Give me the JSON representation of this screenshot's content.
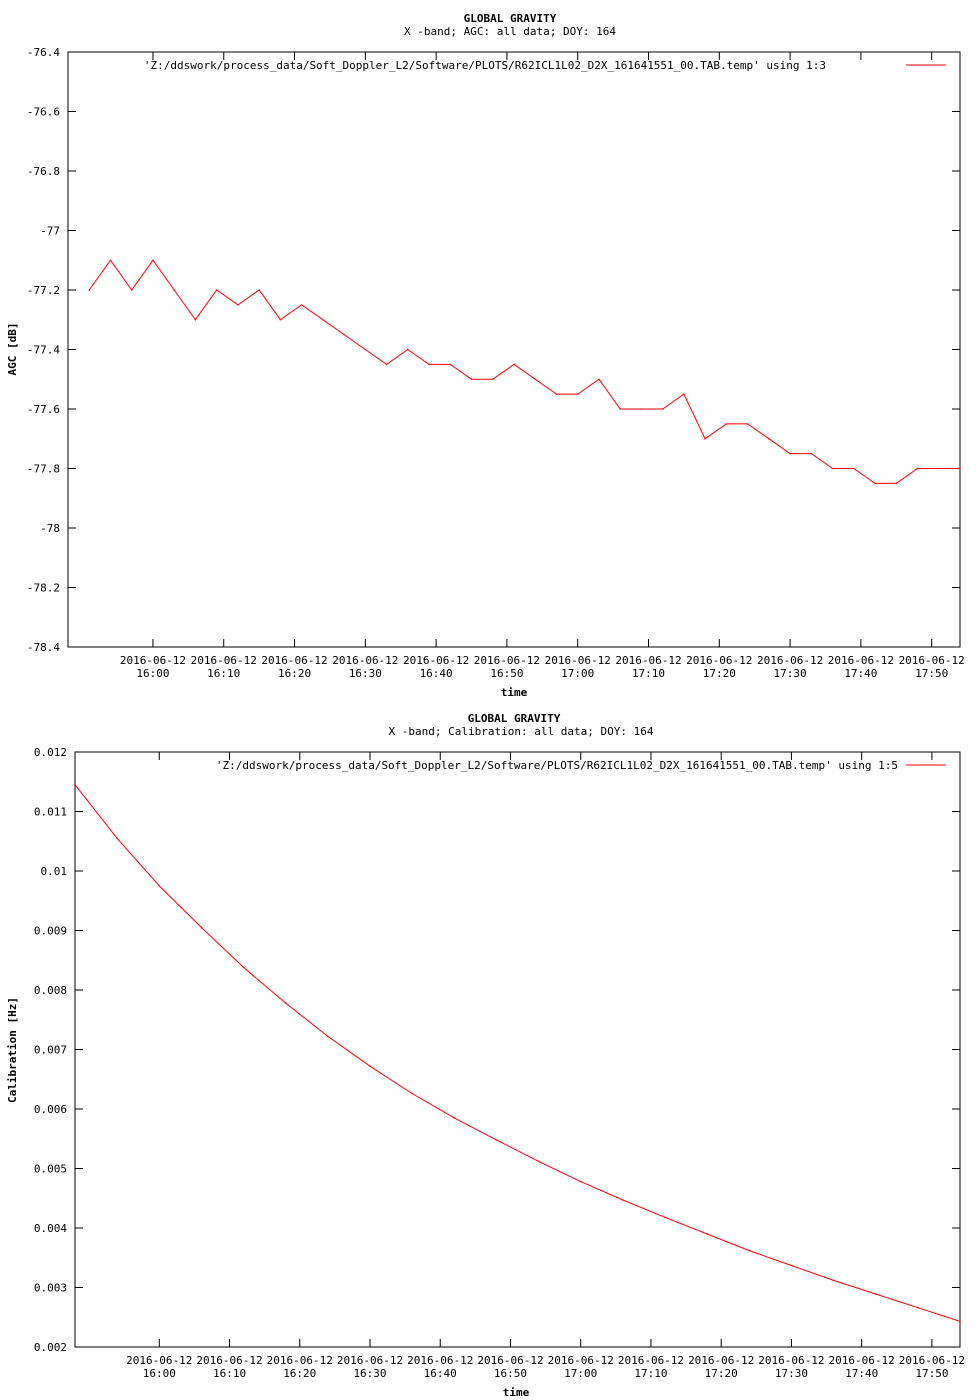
{
  "chart_data": [
    {
      "type": "line",
      "title": "GLOBAL GRAVITY",
      "subtitle": "X -band; AGC: all data; DOY: 164",
      "xlabel": "time",
      "ylabel": "AGC [dB]",
      "ylim": [
        -78.4,
        -76.4
      ],
      "yticks": [
        -76.4,
        -76.6,
        -76.8,
        -77,
        -77.2,
        -77.4,
        -77.6,
        -77.8,
        -78,
        -78.2,
        -78.4
      ],
      "xlim": [
        15.8,
        17.9
      ],
      "xticks": [
        {
          "v": 16.0,
          "date": "2016-06-12",
          "time": "16:00"
        },
        {
          "v": 16.1666667,
          "date": "2016-06-12",
          "time": "16:10"
        },
        {
          "v": 16.3333333,
          "date": "2016-06-12",
          "time": "16:20"
        },
        {
          "v": 16.5,
          "date": "2016-06-12",
          "time": "16:30"
        },
        {
          "v": 16.6666667,
          "date": "2016-06-12",
          "time": "16:40"
        },
        {
          "v": 16.8333333,
          "date": "2016-06-12",
          "time": "16:50"
        },
        {
          "v": 17.0,
          "date": "2016-06-12",
          "time": "17:00"
        },
        {
          "v": 17.1666667,
          "date": "2016-06-12",
          "time": "17:10"
        },
        {
          "v": 17.3333333,
          "date": "2016-06-12",
          "time": "17:20"
        },
        {
          "v": 17.5,
          "date": "2016-06-12",
          "time": "17:30"
        },
        {
          "v": 17.6666667,
          "date": "2016-06-12",
          "time": "17:40"
        },
        {
          "v": 17.8333333,
          "date": "2016-06-12",
          "time": "17:50"
        }
      ],
      "legend": "top-right",
      "color": "#ff0000",
      "series": [
        {
          "name": "'Z:/ddswork/process_data/Soft_Doppler_L2/Software/PLOTS/R62ICL1L02_D2X_161641551_00.TAB.temp' using 1:3",
          "x": [
            15.85,
            15.9,
            15.95,
            16.0,
            16.05,
            16.1,
            16.15,
            16.2,
            16.25,
            16.3,
            16.35,
            16.4,
            16.45,
            16.5,
            16.55,
            16.6,
            16.65,
            16.7,
            16.75,
            16.8,
            16.85,
            16.9,
            16.95,
            17.0,
            17.05,
            17.1,
            17.15,
            17.2,
            17.25,
            17.3,
            17.35,
            17.4,
            17.45,
            17.5,
            17.55,
            17.6,
            17.65,
            17.7,
            17.75,
            17.8,
            17.85,
            17.9
          ],
          "y": [
            -77.2,
            -77.1,
            -77.2,
            -77.1,
            -77.2,
            -77.3,
            -77.2,
            -77.25,
            -77.2,
            -77.3,
            -77.25,
            -77.3,
            -77.35,
            -77.4,
            -77.45,
            -77.4,
            -77.45,
            -77.45,
            -77.5,
            -77.5,
            -77.45,
            -77.5,
            -77.55,
            -77.55,
            -77.5,
            -77.6,
            -77.6,
            -77.6,
            -77.55,
            -77.7,
            -77.65,
            -77.65,
            -77.7,
            -77.75,
            -77.75,
            -77.8,
            -77.8,
            -77.85,
            -77.85,
            -77.8,
            -77.8,
            -77.8
          ]
        }
      ]
    },
    {
      "type": "line",
      "title": "GLOBAL GRAVITY",
      "subtitle": "X -band; Calibration: all data; DOY: 164",
      "xlabel": "time",
      "ylabel": "Calibration [Hz]",
      "ylim": [
        0.002,
        0.012
      ],
      "yticks": [
        0.012,
        0.011,
        0.01,
        0.009,
        0.008,
        0.007,
        0.006,
        0.005,
        0.004,
        0.003,
        0.002
      ],
      "xlim": [
        15.8,
        17.9
      ],
      "xticks": [
        {
          "v": 16.0,
          "date": "2016-06-12",
          "time": "16:00"
        },
        {
          "v": 16.1666667,
          "date": "2016-06-12",
          "time": "16:10"
        },
        {
          "v": 16.3333333,
          "date": "2016-06-12",
          "time": "16:20"
        },
        {
          "v": 16.5,
          "date": "2016-06-12",
          "time": "16:30"
        },
        {
          "v": 16.6666667,
          "date": "2016-06-12",
          "time": "16:40"
        },
        {
          "v": 16.8333333,
          "date": "2016-06-12",
          "time": "16:50"
        },
        {
          "v": 17.0,
          "date": "2016-06-12",
          "time": "17:00"
        },
        {
          "v": 17.1666667,
          "date": "2016-06-12",
          "time": "17:10"
        },
        {
          "v": 17.3333333,
          "date": "2016-06-12",
          "time": "17:20"
        },
        {
          "v": 17.5,
          "date": "2016-06-12",
          "time": "17:30"
        },
        {
          "v": 17.6666667,
          "date": "2016-06-12",
          "time": "17:40"
        },
        {
          "v": 17.8333333,
          "date": "2016-06-12",
          "time": "17:50"
        }
      ],
      "legend": "top-right",
      "color": "#ff0000",
      "series": [
        {
          "name": "'Z:/ddswork/process_data/Soft_Doppler_L2/Software/PLOTS/R62ICL1L02_D2X_161641551_00.TAB.temp' using 1:5",
          "x": [
            15.8,
            15.9,
            16.0,
            16.1,
            16.2,
            16.3,
            16.4,
            16.5,
            16.6,
            16.7,
            16.8,
            16.9,
            17.0,
            17.1,
            17.2,
            17.3,
            17.4,
            17.5,
            17.6,
            17.7,
            17.8,
            17.9
          ],
          "y": [
            0.01145,
            0.01055,
            0.00975,
            0.00905,
            0.00838,
            0.00778,
            0.00722,
            0.00672,
            0.00626,
            0.00585,
            0.00548,
            0.00512,
            0.00478,
            0.00447,
            0.00418,
            0.0039,
            0.00362,
            0.00337,
            0.00312,
            0.00289,
            0.00266,
            0.00243
          ]
        }
      ]
    }
  ]
}
